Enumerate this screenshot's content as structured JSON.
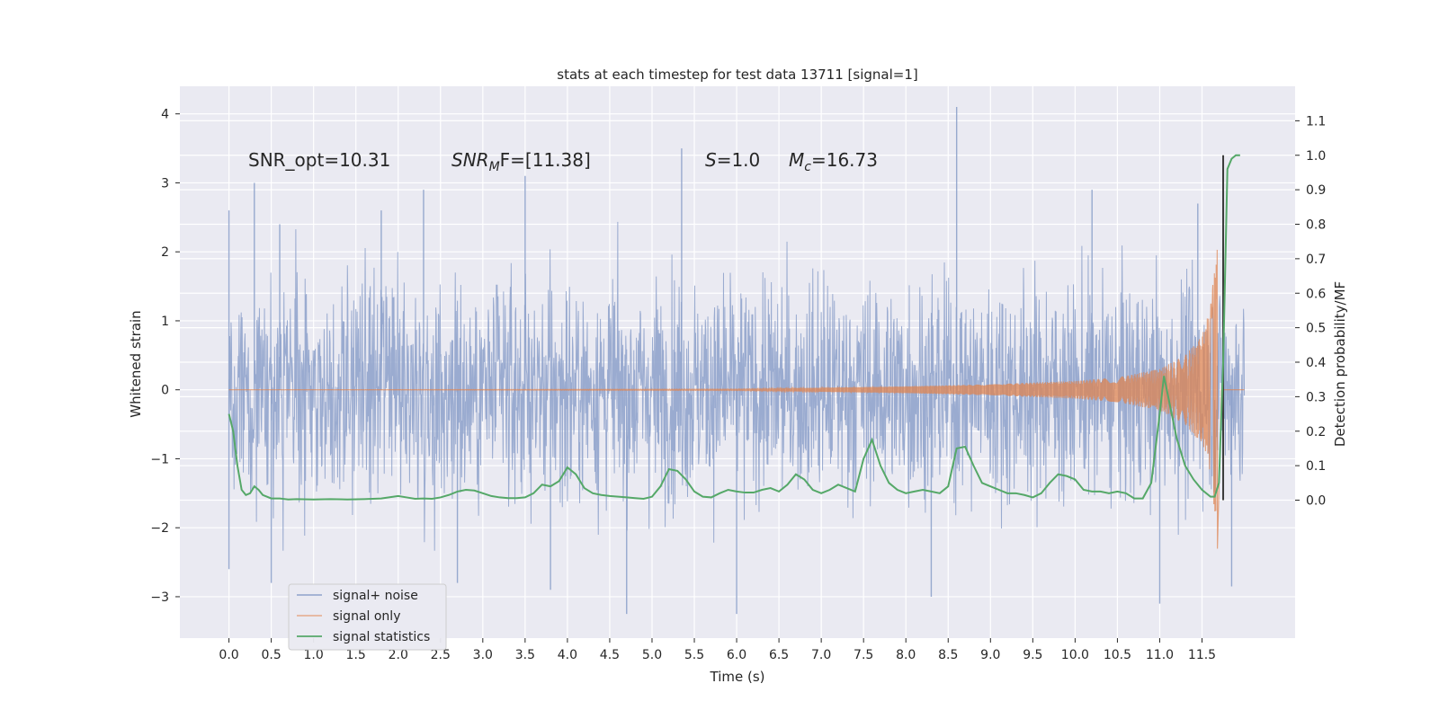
{
  "chart_data": {
    "type": "line",
    "title": "stats at each timestep for test data 13711 [signal=1]",
    "xlabel": "Time (s)",
    "ylabel": "Whitened strain",
    "ylabel_right": "Detection probability/MF",
    "xlim": [
      -0.58,
      12.6
    ],
    "ylim": [
      -3.6,
      4.4
    ],
    "ylim_right": [
      -0.4,
      1.2
    ],
    "x_ticks": [
      "0.0",
      "0.5",
      "1.0",
      "1.5",
      "2.0",
      "2.5",
      "3.0",
      "3.5",
      "4.0",
      "4.5",
      "5.0",
      "5.5",
      "6.0",
      "6.5",
      "7.0",
      "7.5",
      "8.0",
      "8.5",
      "9.0",
      "9.5",
      "10.0",
      "10.5",
      "11.0",
      "11.5"
    ],
    "y_ticks": [
      "4",
      "3",
      "2",
      "1",
      "0",
      "−1",
      "−2",
      "−3"
    ],
    "y_ticks_right": [
      "1.1",
      "1.0",
      "0.9",
      "0.8",
      "0.7",
      "0.6",
      "0.5",
      "0.4",
      "0.3",
      "0.2",
      "0.1",
      "0.0"
    ],
    "annotations": {
      "snr_opt": "SNR_opt=10.31",
      "snr_mf_sym": "SNR",
      "snr_mf_sub": "M",
      "snr_mf_rest": "F=[11.38]",
      "s_sym": "S",
      "s_rest": "=1.0",
      "mc_sym": "M",
      "mc_sub": "c",
      "mc_rest": "=16.73"
    },
    "legend": {
      "position": "lower-left",
      "entries": [
        "signal+ noise",
        "signal only",
        "signal statistics"
      ]
    },
    "series": [
      {
        "name": "signal+ noise",
        "color": "#8ea2cb",
        "axis": "left",
        "x_range": [
          0.0,
          12.0
        ],
        "typical_envelope": [
          -1.6,
          1.6
        ],
        "peaks_top": [
          [
            0.0,
            2.6
          ],
          [
            0.3,
            3.0
          ],
          [
            0.6,
            2.4
          ],
          [
            1.8,
            2.6
          ],
          [
            2.3,
            2.9
          ],
          [
            3.5,
            3.1
          ],
          [
            5.35,
            3.5
          ],
          [
            8.6,
            4.1
          ],
          [
            10.2,
            2.9
          ],
          [
            11.45,
            2.7
          ],
          [
            11.75,
            2.9
          ]
        ],
        "peaks_bottom": [
          [
            0.0,
            -2.6
          ],
          [
            0.5,
            -2.8
          ],
          [
            2.7,
            -2.8
          ],
          [
            3.8,
            -2.9
          ],
          [
            4.7,
            -3.25
          ],
          [
            6.0,
            -3.25
          ],
          [
            8.3,
            -3.0
          ],
          [
            11.0,
            -3.1
          ],
          [
            11.85,
            -2.85
          ]
        ]
      },
      {
        "name": "signal only",
        "color": "#dd8452",
        "axis": "left",
        "x_range": [
          0.0,
          12.0
        ],
        "chirp_merger_time": 11.68,
        "envelope": [
          [
            0.0,
            0.0
          ],
          [
            6.0,
            0.01
          ],
          [
            7.0,
            0.03
          ],
          [
            8.0,
            0.05
          ],
          [
            9.0,
            0.08
          ],
          [
            10.0,
            0.13
          ],
          [
            10.5,
            0.18
          ],
          [
            11.0,
            0.3
          ],
          [
            11.3,
            0.5
          ],
          [
            11.5,
            0.8
          ],
          [
            11.6,
            1.2
          ],
          [
            11.65,
            1.8
          ],
          [
            11.68,
            2.4
          ]
        ],
        "ringdown_end": 11.73
      },
      {
        "name": "signal statistics",
        "color": "#55a868",
        "axis": "right",
        "x": [
          0.0,
          0.05,
          0.1,
          0.15,
          0.2,
          0.25,
          0.3,
          0.35,
          0.4,
          0.45,
          0.5,
          0.6,
          0.7,
          0.8,
          1.0,
          1.2,
          1.4,
          1.6,
          1.8,
          2.0,
          2.1,
          2.2,
          2.3,
          2.4,
          2.5,
          2.6,
          2.7,
          2.8,
          2.9,
          3.0,
          3.1,
          3.2,
          3.3,
          3.4,
          3.5,
          3.6,
          3.7,
          3.8,
          3.9,
          4.0,
          4.1,
          4.2,
          4.3,
          4.4,
          4.5,
          4.6,
          4.7,
          4.8,
          4.9,
          5.0,
          5.1,
          5.2,
          5.3,
          5.4,
          5.5,
          5.6,
          5.7,
          5.8,
          5.9,
          6.0,
          6.1,
          6.2,
          6.3,
          6.4,
          6.5,
          6.6,
          6.7,
          6.8,
          6.9,
          7.0,
          7.1,
          7.2,
          7.3,
          7.4,
          7.5,
          7.6,
          7.7,
          7.8,
          7.9,
          8.0,
          8.1,
          8.2,
          8.3,
          8.4,
          8.5,
          8.6,
          8.7,
          8.8,
          8.9,
          9.0,
          9.1,
          9.2,
          9.3,
          9.4,
          9.5,
          9.6,
          9.7,
          9.8,
          9.9,
          10.0,
          10.1,
          10.2,
          10.3,
          10.4,
          10.5,
          10.6,
          10.7,
          10.8,
          10.9,
          11.0,
          11.05,
          11.1,
          11.2,
          11.3,
          11.4,
          11.5,
          11.6,
          11.65,
          11.7,
          11.75,
          11.8,
          11.85,
          11.9,
          11.95
        ],
        "y": [
          0.25,
          0.2,
          0.1,
          0.03,
          0.015,
          0.02,
          0.04,
          0.03,
          0.015,
          0.01,
          0.005,
          0.005,
          0.002,
          0.003,
          0.002,
          0.003,
          0.002,
          0.003,
          0.005,
          0.012,
          0.008,
          0.004,
          0.005,
          0.004,
          0.008,
          0.015,
          0.025,
          0.03,
          0.028,
          0.02,
          0.012,
          0.008,
          0.006,
          0.006,
          0.008,
          0.02,
          0.045,
          0.04,
          0.055,
          0.095,
          0.075,
          0.035,
          0.02,
          0.015,
          0.012,
          0.01,
          0.008,
          0.006,
          0.004,
          0.01,
          0.04,
          0.09,
          0.085,
          0.06,
          0.025,
          0.01,
          0.008,
          0.02,
          0.03,
          0.025,
          0.022,
          0.022,
          0.03,
          0.035,
          0.025,
          0.045,
          0.075,
          0.06,
          0.03,
          0.02,
          0.03,
          0.045,
          0.035,
          0.025,
          0.12,
          0.175,
          0.1,
          0.05,
          0.03,
          0.02,
          0.025,
          0.03,
          0.025,
          0.02,
          0.04,
          0.15,
          0.155,
          0.1,
          0.05,
          0.04,
          0.03,
          0.02,
          0.02,
          0.015,
          0.008,
          0.02,
          0.05,
          0.075,
          0.07,
          0.06,
          0.03,
          0.025,
          0.025,
          0.02,
          0.025,
          0.02,
          0.005,
          0.005,
          0.05,
          0.25,
          0.36,
          0.3,
          0.18,
          0.1,
          0.06,
          0.03,
          0.01,
          0.01,
          0.05,
          0.4,
          0.96,
          0.99,
          1.0,
          1.0
        ]
      }
    ],
    "vertical_line": {
      "x": 11.75,
      "color": "#3b3b3b"
    }
  }
}
